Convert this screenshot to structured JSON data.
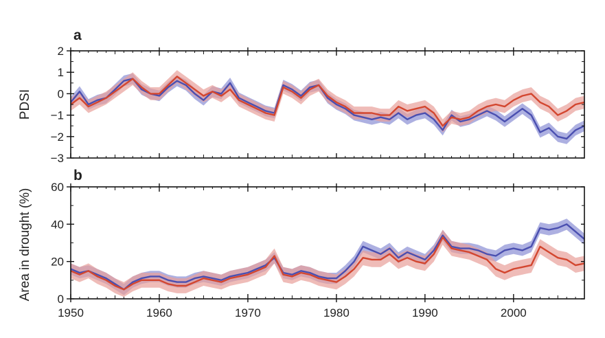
{
  "chart_data": [
    {
      "panel": "a",
      "type": "line",
      "ylabel": "PDSI",
      "xlim": [
        1950,
        2008
      ],
      "ylim": [
        -3,
        2
      ],
      "yticks": [
        2,
        1,
        0,
        -1,
        -2,
        -3
      ],
      "ytick_labels": [
        "2",
        "1",
        "0",
        "−1",
        "−2",
        "−3"
      ],
      "series": [
        {
          "color": "#4a4fb0",
          "band_color": "#8a8fd4",
          "x": [
            1950,
            1951,
            1952,
            1953,
            1954,
            1955,
            1956,
            1957,
            1958,
            1959,
            1960,
            1961,
            1962,
            1963,
            1964,
            1965,
            1966,
            1967,
            1968,
            1969,
            1970,
            1971,
            1972,
            1973,
            1974,
            1975,
            1976,
            1977,
            1978,
            1979,
            1980,
            1981,
            1982,
            1983,
            1984,
            1985,
            1986,
            1987,
            1988,
            1989,
            1990,
            1991,
            1992,
            1993,
            1994,
            1995,
            1996,
            1997,
            1998,
            1999,
            2000,
            2001,
            2002,
            2003,
            2004,
            2005,
            2006,
            2007,
            2008
          ],
          "y": [
            -0.4,
            0.1,
            -0.5,
            -0.3,
            -0.2,
            0.2,
            0.6,
            0.7,
            0.2,
            0.0,
            -0.1,
            0.3,
            0.6,
            0.4,
            0.0,
            -0.3,
            0.1,
            0.0,
            0.5,
            -0.2,
            -0.4,
            -0.6,
            -0.8,
            -0.9,
            0.4,
            0.2,
            -0.1,
            0.3,
            0.4,
            -0.2,
            -0.5,
            -0.7,
            -1.0,
            -1.1,
            -1.2,
            -1.1,
            -1.2,
            -0.9,
            -1.2,
            -1.0,
            -0.9,
            -1.2,
            -1.7,
            -1.0,
            -1.3,
            -1.2,
            -1.0,
            -0.8,
            -1.0,
            -1.3,
            -1.0,
            -0.7,
            -1.0,
            -1.8,
            -1.6,
            -2.0,
            -2.1,
            -1.7,
            -1.5
          ],
          "uncertainty": 0.25
        },
        {
          "color": "#d3462f",
          "band_color": "#e8a09a",
          "x": [
            1950,
            1951,
            1952,
            1953,
            1954,
            1955,
            1956,
            1957,
            1958,
            1959,
            1960,
            1961,
            1962,
            1963,
            1964,
            1965,
            1966,
            1967,
            1968,
            1969,
            1970,
            1971,
            1972,
            1973,
            1974,
            1975,
            1976,
            1977,
            1978,
            1979,
            1980,
            1981,
            1982,
            1983,
            1984,
            1985,
            1986,
            1987,
            1988,
            1989,
            1990,
            1991,
            1992,
            1993,
            1994,
            1995,
            1996,
            1997,
            1998,
            1999,
            2000,
            2001,
            2002,
            2003,
            2004,
            2005,
            2006,
            2007,
            2008
          ],
          "y": [
            -0.5,
            -0.2,
            -0.6,
            -0.4,
            -0.2,
            0.1,
            0.4,
            0.7,
            0.3,
            0.0,
            0.0,
            0.4,
            0.8,
            0.5,
            0.2,
            -0.1,
            0.1,
            -0.1,
            0.2,
            -0.3,
            -0.5,
            -0.7,
            -0.9,
            -1.0,
            0.3,
            0.1,
            -0.2,
            0.2,
            0.4,
            -0.1,
            -0.4,
            -0.6,
            -0.9,
            -0.9,
            -0.9,
            -1.0,
            -1.0,
            -0.6,
            -0.8,
            -0.7,
            -0.6,
            -0.9,
            -1.5,
            -1.1,
            -1.2,
            -1.1,
            -0.8,
            -0.6,
            -0.5,
            -0.6,
            -0.3,
            -0.1,
            0.0,
            -0.4,
            -0.6,
            -1.0,
            -0.8,
            -0.5,
            -0.4
          ],
          "uncertainty": 0.3
        }
      ]
    },
    {
      "panel": "b",
      "type": "line",
      "ylabel": "Area in drought (%)",
      "xlim": [
        1950,
        2008
      ],
      "ylim": [
        0,
        60
      ],
      "yticks": [
        0,
        20,
        40,
        60
      ],
      "ytick_labels": [
        "0",
        "20",
        "40",
        "60"
      ],
      "xticks": [
        1950,
        1960,
        1970,
        1980,
        1990,
        2000
      ],
      "xtick_labels": [
        "1950",
        "1960",
        "1970",
        "1980",
        "1990",
        "2000"
      ],
      "series": [
        {
          "color": "#4a4fb0",
          "band_color": "#8a8fd4",
          "x": [
            1950,
            1951,
            1952,
            1953,
            1954,
            1955,
            1956,
            1957,
            1958,
            1959,
            1960,
            1961,
            1962,
            1963,
            1964,
            1965,
            1966,
            1967,
            1968,
            1969,
            1970,
            1971,
            1972,
            1973,
            1974,
            1975,
            1976,
            1977,
            1978,
            1979,
            1980,
            1981,
            1982,
            1983,
            1984,
            1985,
            1986,
            1987,
            1988,
            1989,
            1990,
            1991,
            1992,
            1993,
            1994,
            1995,
            1996,
            1997,
            1998,
            1999,
            2000,
            2001,
            2002,
            2003,
            2004,
            2005,
            2006,
            2007,
            2008
          ],
          "y": [
            16,
            14,
            15,
            13,
            11,
            8,
            5,
            9,
            11,
            12,
            12,
            10,
            9,
            9,
            11,
            12,
            11,
            10,
            12,
            13,
            14,
            16,
            18,
            22,
            14,
            13,
            15,
            14,
            12,
            11,
            11,
            15,
            20,
            28,
            26,
            24,
            27,
            22,
            25,
            23,
            21,
            26,
            34,
            28,
            27,
            27,
            26,
            24,
            23,
            26,
            27,
            26,
            28,
            38,
            37,
            38,
            40,
            36,
            32
          ],
          "uncertainty": 3
        },
        {
          "color": "#d3462f",
          "band_color": "#e8a09a",
          "x": [
            1950,
            1951,
            1952,
            1953,
            1954,
            1955,
            1956,
            1957,
            1958,
            1959,
            1960,
            1961,
            1962,
            1963,
            1964,
            1965,
            1966,
            1967,
            1968,
            1969,
            1970,
            1971,
            1972,
            1973,
            1974,
            1975,
            1976,
            1977,
            1978,
            1979,
            1980,
            1981,
            1982,
            1983,
            1984,
            1985,
            1986,
            1987,
            1988,
            1989,
            1990,
            1991,
            1992,
            1993,
            1994,
            1995,
            1996,
            1997,
            1998,
            1999,
            2000,
            2001,
            2002,
            2003,
            2004,
            2005,
            2006,
            2007,
            2008
          ],
          "y": [
            15,
            13,
            15,
            12,
            10,
            7,
            5,
            8,
            10,
            10,
            10,
            8,
            7,
            7,
            9,
            11,
            10,
            9,
            11,
            12,
            13,
            15,
            17,
            23,
            13,
            12,
            14,
            13,
            11,
            10,
            9,
            12,
            16,
            22,
            21,
            21,
            24,
            20,
            22,
            20,
            19,
            24,
            33,
            27,
            26,
            25,
            23,
            21,
            16,
            14,
            16,
            17,
            18,
            28,
            25,
            22,
            21,
            18,
            19
          ],
          "uncertainty": 4
        }
      ]
    }
  ]
}
